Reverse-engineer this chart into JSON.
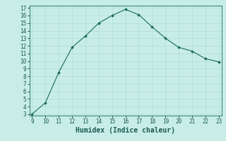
{
  "x": [
    9,
    10,
    11,
    12,
    13,
    14,
    15,
    16,
    17,
    18,
    19,
    20,
    21,
    22,
    23
  ],
  "y": [
    3.0,
    4.5,
    8.5,
    11.8,
    13.3,
    15.0,
    16.0,
    16.8,
    16.1,
    14.5,
    13.0,
    11.8,
    11.3,
    10.3,
    9.9
  ],
  "xlabel": "Humidex (Indice chaleur)",
  "ylim_min": 3,
  "ylim_max": 17,
  "xlim_min": 9,
  "xlim_max": 23,
  "yticks": [
    3,
    4,
    5,
    6,
    7,
    8,
    9,
    10,
    11,
    12,
    13,
    14,
    15,
    16,
    17
  ],
  "xticks": [
    9,
    10,
    11,
    12,
    13,
    14,
    15,
    16,
    17,
    18,
    19,
    20,
    21,
    22,
    23
  ],
  "line_color": "#1a6b5a",
  "marker_color": "#1a6b5a",
  "bg_color": "#c8ede8",
  "grid_color": "#b0ddd8",
  "tick_label_fontsize": 5.5,
  "xlabel_fontsize": 7.0
}
